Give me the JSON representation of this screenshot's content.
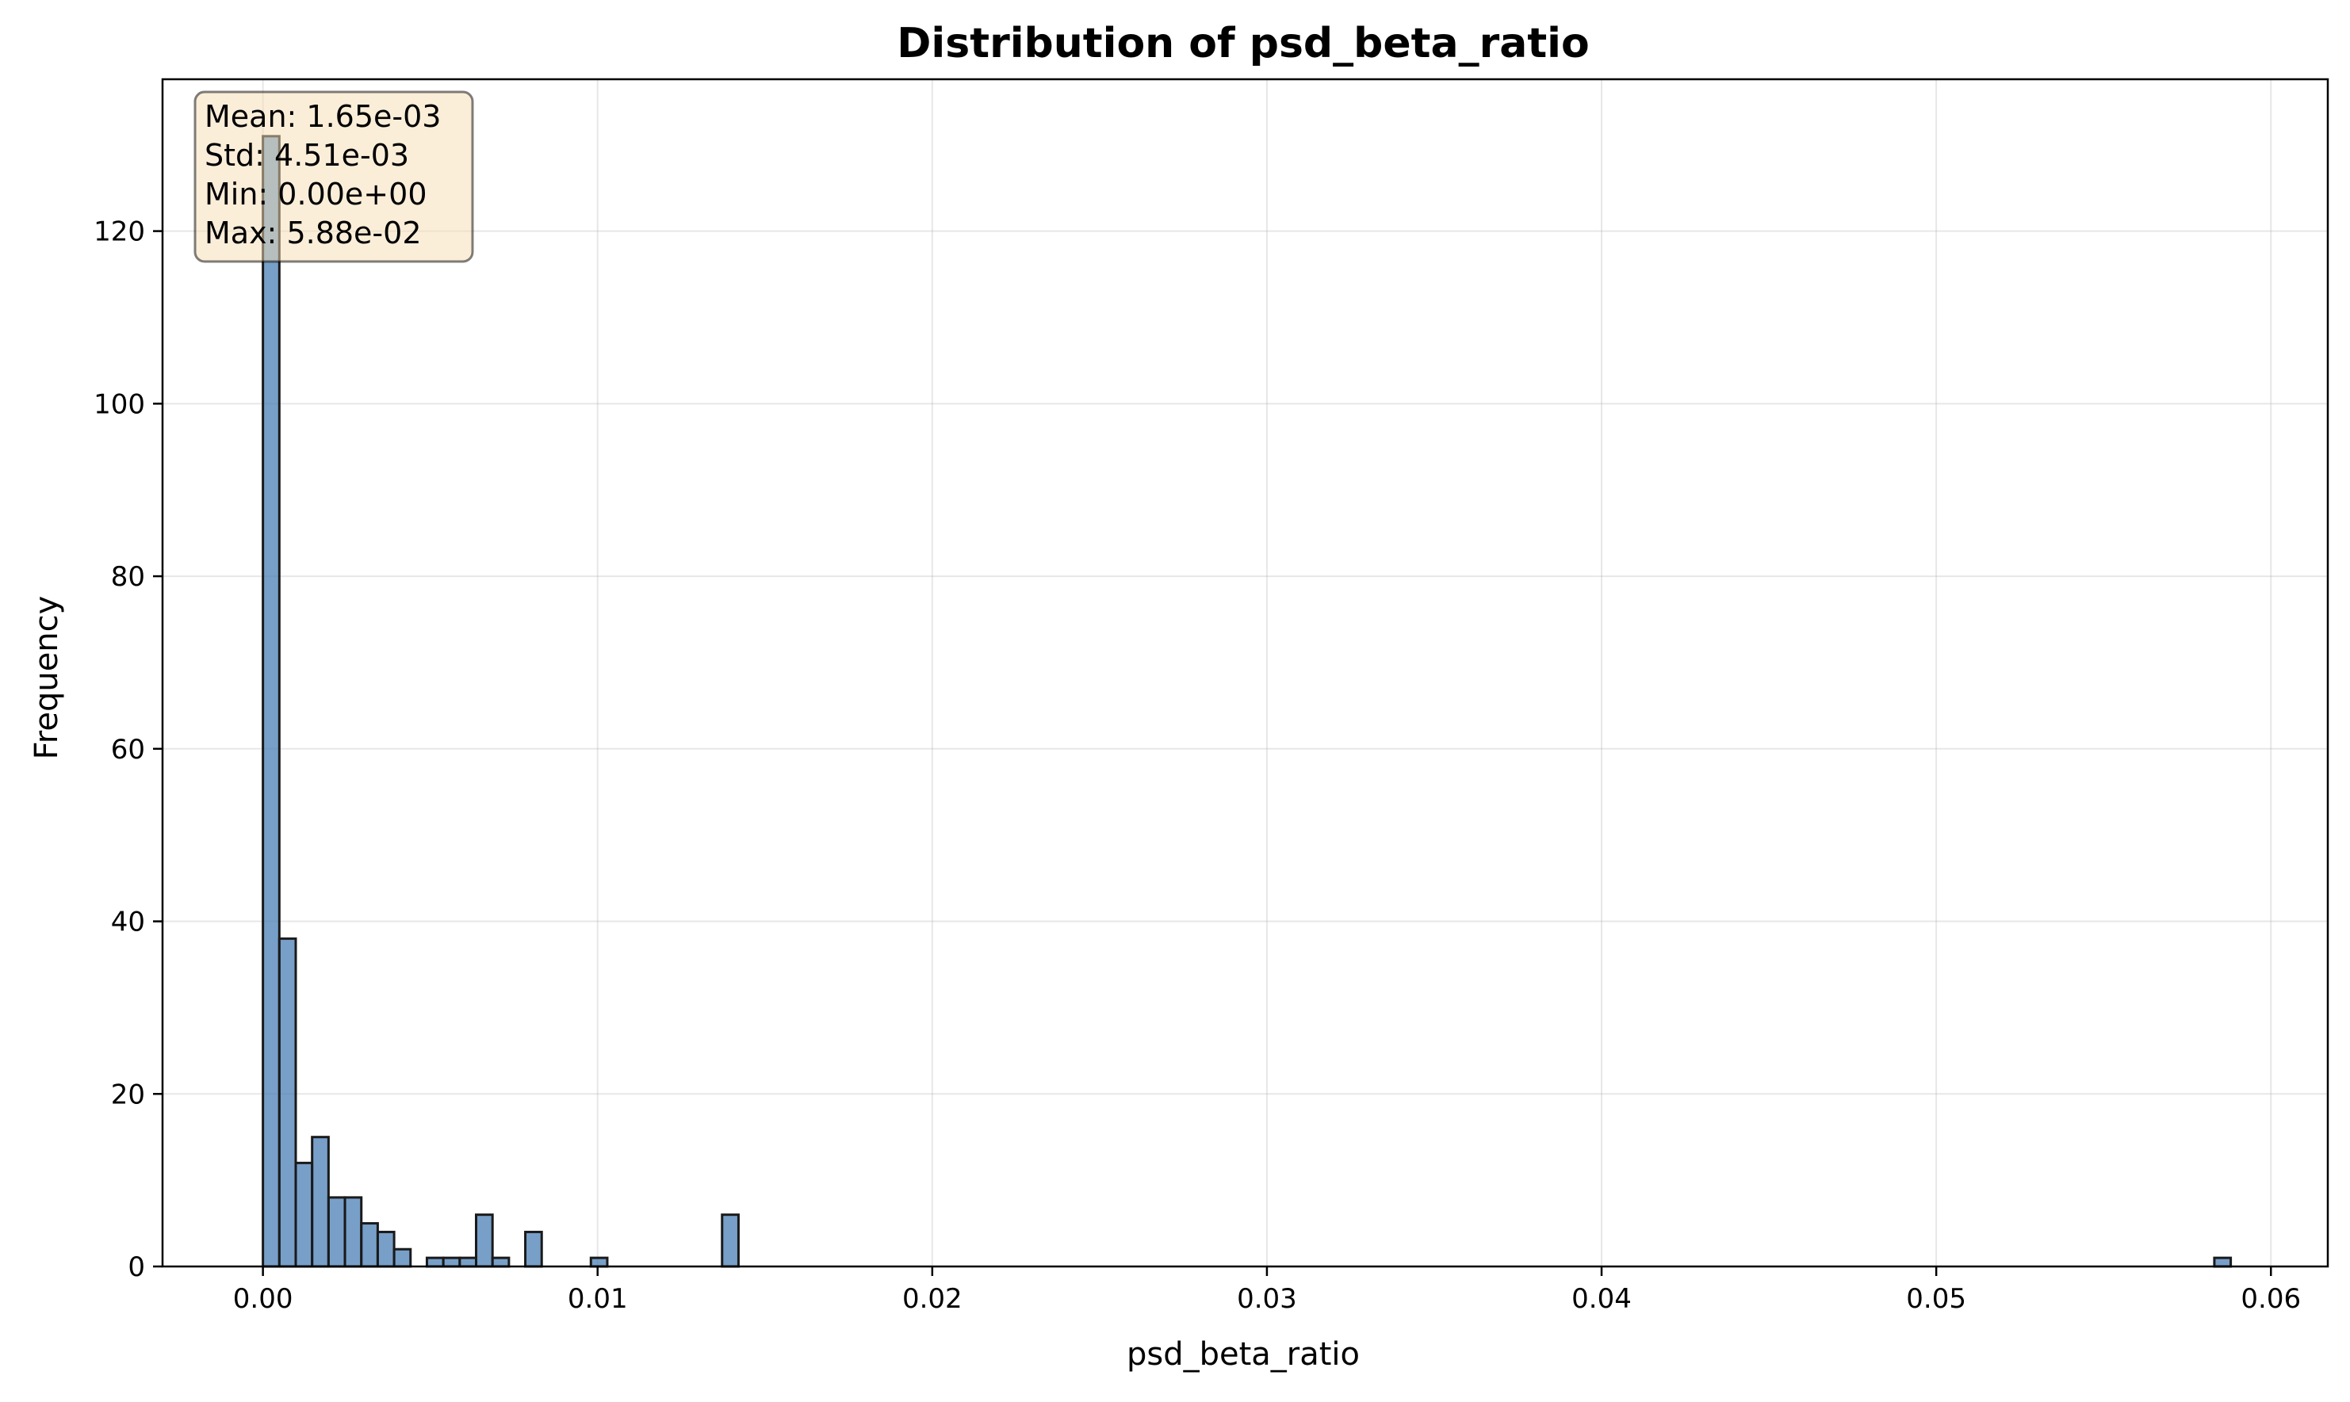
{
  "chart_data": {
    "type": "bar",
    "title": "Distribution of psd_beta_ratio",
    "xlabel": "psd_beta_ratio",
    "ylabel": "Frequency",
    "xlim": [
      -0.003,
      0.0617
    ],
    "ylim": [
      0,
      137.6
    ],
    "grid": true,
    "xticks": [
      0.0,
      0.01,
      0.02,
      0.03,
      0.04,
      0.05,
      0.06
    ],
    "xtick_labels": [
      "0.00",
      "0.01",
      "0.02",
      "0.03",
      "0.04",
      "0.05",
      "0.06"
    ],
    "yticks": [
      0,
      20,
      40,
      60,
      80,
      100,
      120
    ],
    "ytick_labels": [
      "0",
      "20",
      "40",
      "60",
      "80",
      "100",
      "120"
    ],
    "bin_width": 0.00049,
    "bar_color": "#4a7fb5",
    "edge_color": "#1a1a1a",
    "bins": [
      {
        "x": 0.0,
        "count": 131
      },
      {
        "x": 0.00049,
        "count": 38
      },
      {
        "x": 0.00098,
        "count": 12
      },
      {
        "x": 0.00147,
        "count": 15
      },
      {
        "x": 0.00196,
        "count": 8
      },
      {
        "x": 0.00245,
        "count": 8
      },
      {
        "x": 0.00294,
        "count": 5
      },
      {
        "x": 0.00343,
        "count": 4
      },
      {
        "x": 0.00392,
        "count": 2
      },
      {
        "x": 0.0049,
        "count": 1
      },
      {
        "x": 0.00539,
        "count": 1
      },
      {
        "x": 0.00588,
        "count": 1
      },
      {
        "x": 0.00637,
        "count": 6
      },
      {
        "x": 0.00686,
        "count": 1
      },
      {
        "x": 0.00784,
        "count": 4
      },
      {
        "x": 0.0098,
        "count": 1
      },
      {
        "x": 0.01372,
        "count": 6
      },
      {
        "x": 0.05831,
        "count": 1
      }
    ],
    "stats_box": {
      "lines": [
        "Mean: 1.65e-03",
        "Std: 4.51e-03",
        "Min: 0.00e+00",
        "Max: 5.88e-02"
      ],
      "background_color": "#f5deb3"
    }
  }
}
